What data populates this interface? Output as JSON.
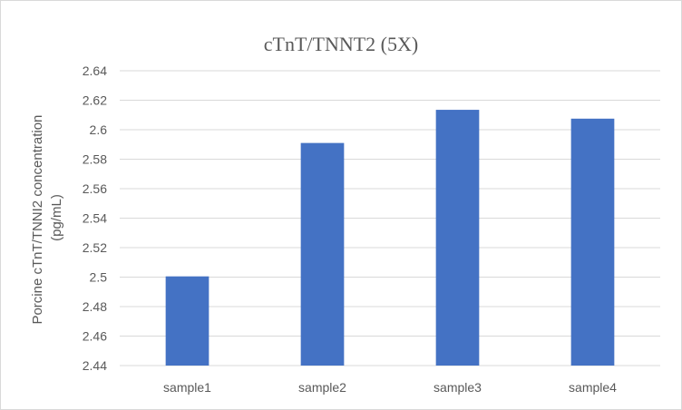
{
  "chart_data": {
    "type": "bar",
    "title": "cTnT/TNNT2 (5X)",
    "xlabel": "",
    "ylabel": "Porcine cTnT/TNNI2 concentration (pg/mL)",
    "ylabel_lines": [
      "Porcine cTnT/TNNI2 concentration",
      "(pg/mL)"
    ],
    "categories": [
      "sample1",
      "sample2",
      "sample3",
      "sample4"
    ],
    "values": [
      2.5005,
      2.591,
      2.6135,
      2.6075
    ],
    "ylim": [
      2.44,
      2.64
    ],
    "yticks": [
      2.44,
      2.46,
      2.48,
      2.5,
      2.52,
      2.54,
      2.56,
      2.58,
      2.6,
      2.62,
      2.64
    ],
    "ytick_labels": [
      "2.44",
      "2.46",
      "2.48",
      "2.5",
      "2.52",
      "2.54",
      "2.56",
      "2.58",
      "2.6",
      "2.62",
      "2.64"
    ],
    "grid": true,
    "legend": "none",
    "colors": {
      "bar": "#4472c4",
      "grid": "#d9d9d9",
      "text": "#595959",
      "border": "#d9d9d9"
    }
  }
}
